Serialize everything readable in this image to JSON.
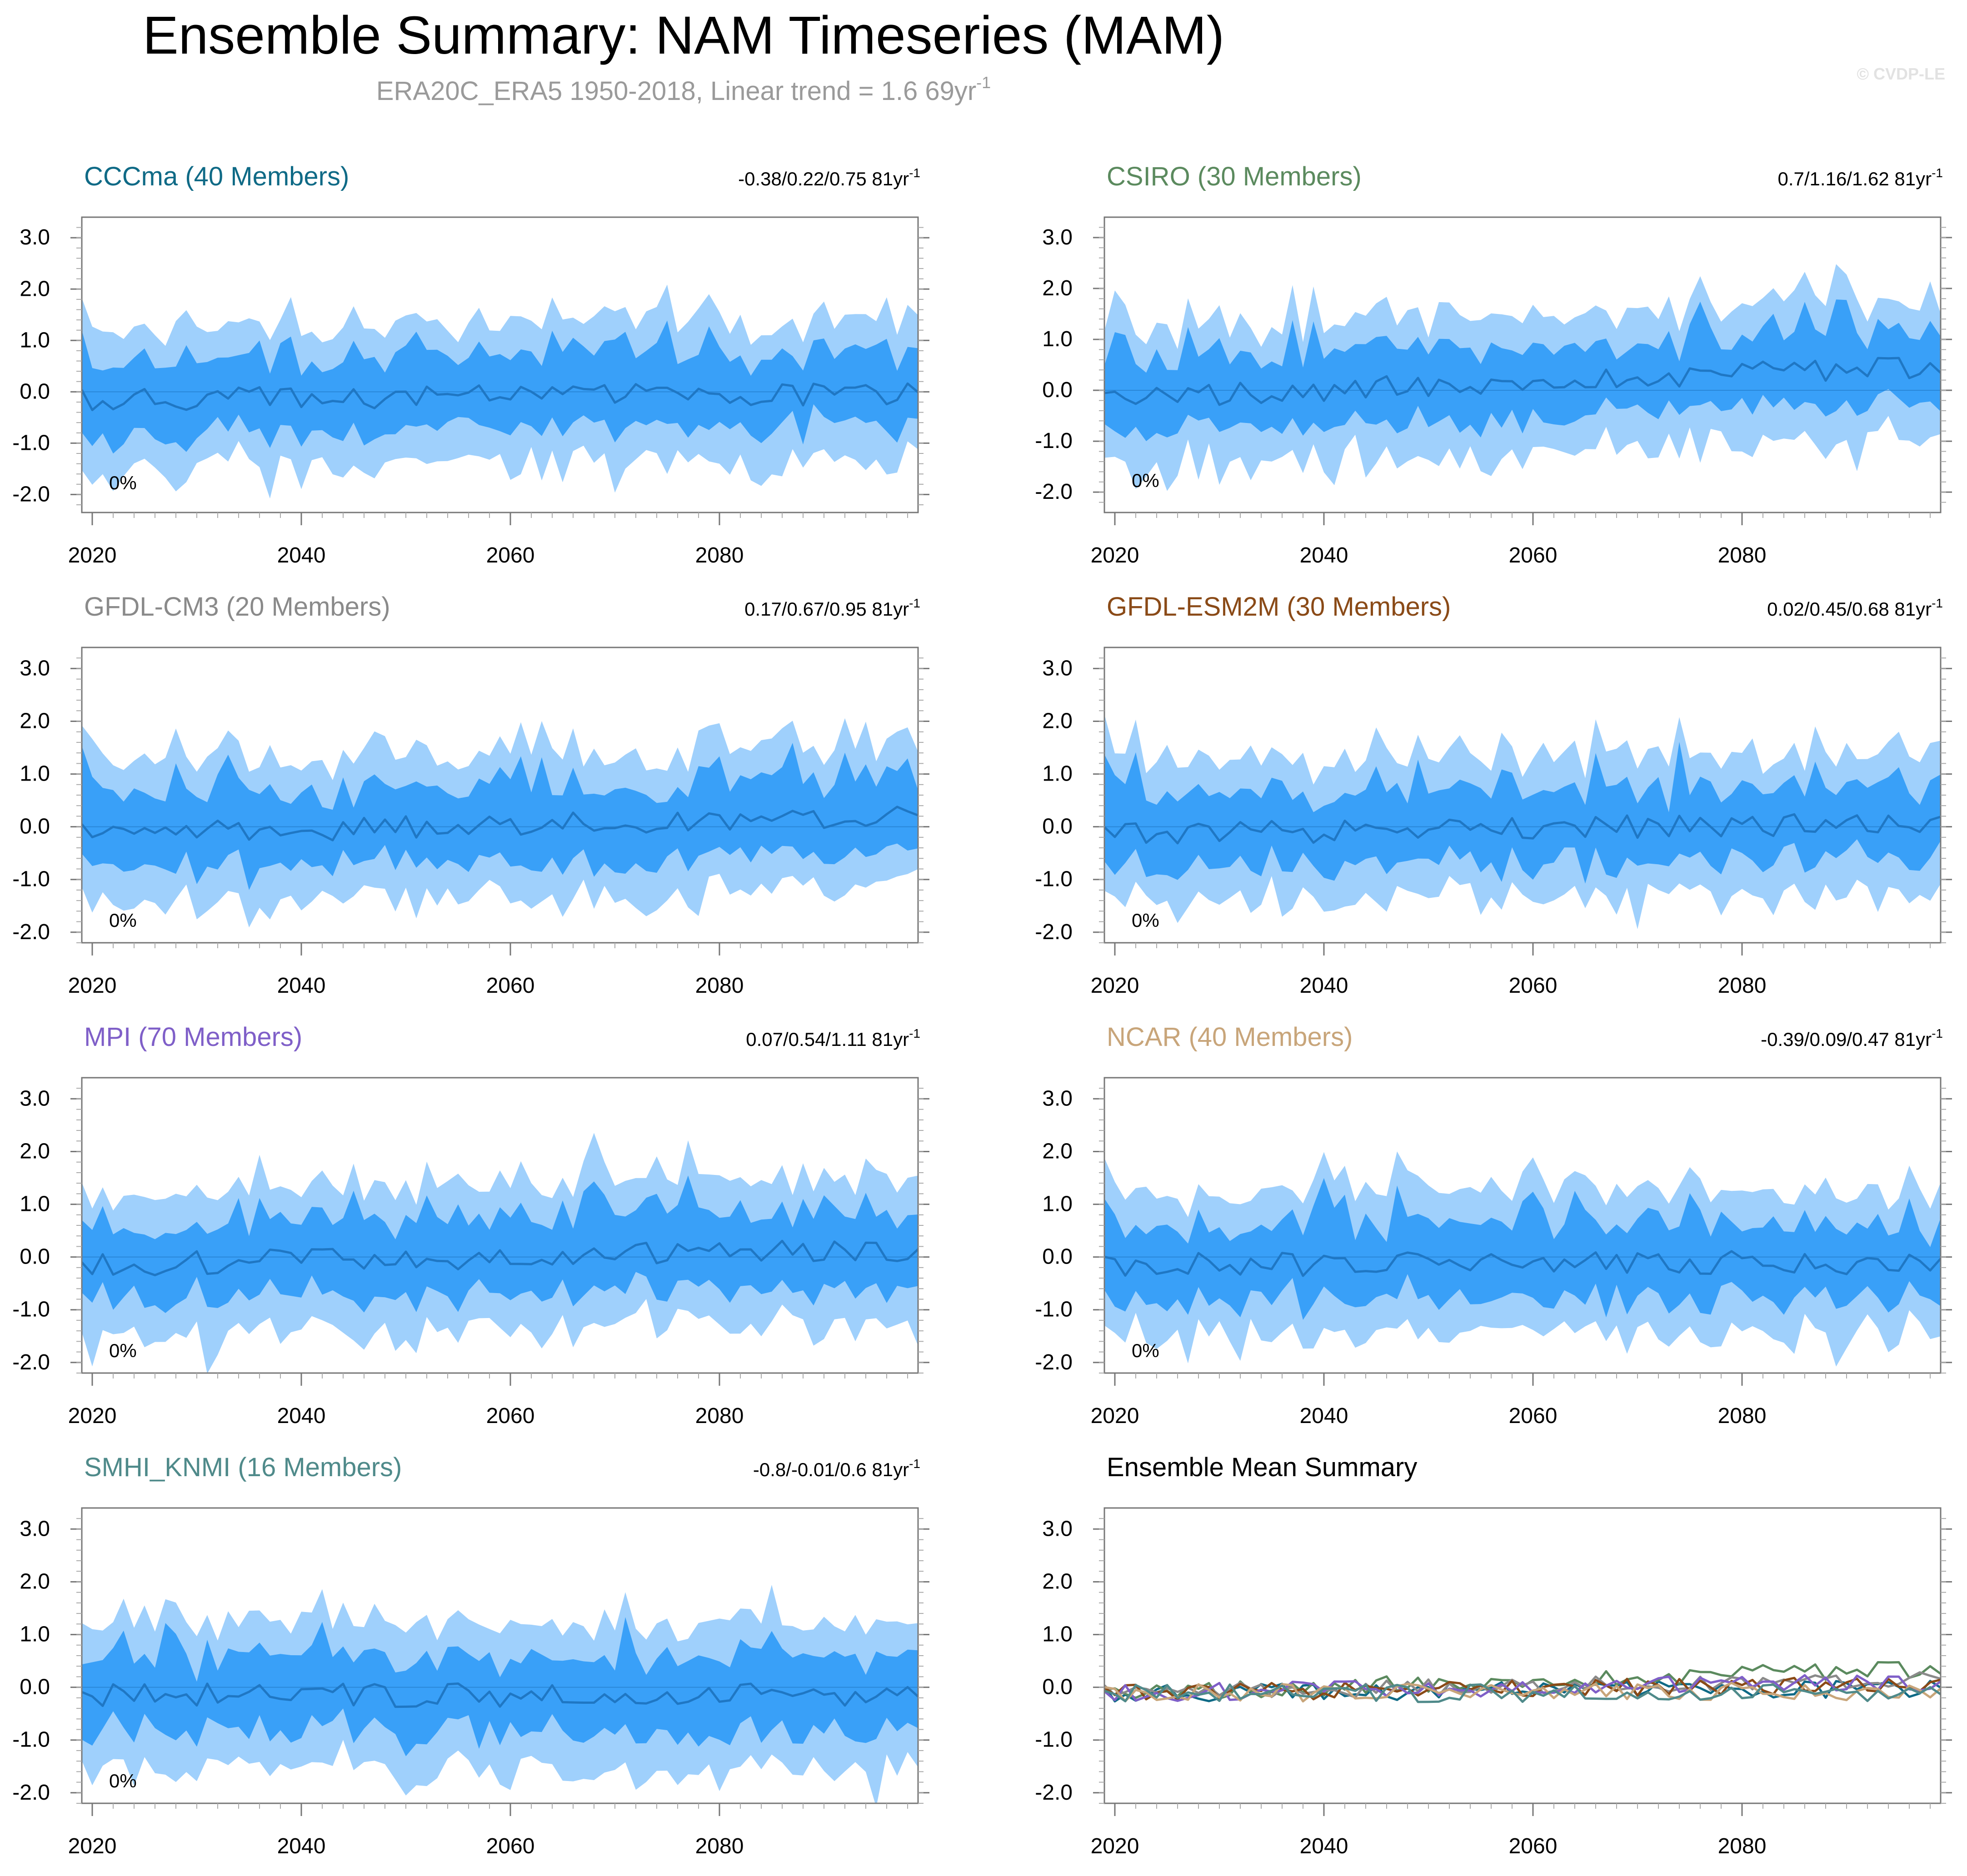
{
  "figure": {
    "title": "Ensemble Summary: NAM Timeseries (MAM)",
    "subtitle_main": "ERA20C_ERA5 1950-2018, Linear trend = 1.6 69yr",
    "subtitle_sup": "-1",
    "copyright": "© CVDP-LE"
  },
  "colors": {
    "outer_band": "#9fd0fc",
    "inner_band": "#39a0f8",
    "mean_line": "#1f77c4",
    "axis": "#777777",
    "text": "#000000"
  },
  "chart_data": [
    {
      "type": "area",
      "title": "CCCma (40 Members)",
      "title_color": "#0f6a86",
      "trend": "-0.38/0.22/0.75 81yr",
      "trend_sup": "-1",
      "pct_label": "0%",
      "xticks": [
        2020,
        2040,
        2060,
        2080
      ],
      "yticks": [
        "3.0",
        "2.0",
        "1.0",
        "0.0",
        "-1.0",
        "-2.0"
      ],
      "xlim": [
        2019,
        2099
      ],
      "ylim": [
        -2.35,
        3.4
      ],
      "seed": 11,
      "trend_value": 0.22
    },
    {
      "type": "area",
      "title": "CSIRO (30 Members)",
      "title_color": "#5b8a5e",
      "trend": "0.7/1.16/1.62 81yr",
      "trend_sup": "-1",
      "pct_label": "0%",
      "xticks": [
        2020,
        2040,
        2060,
        2080
      ],
      "yticks": [
        "3.0",
        "2.0",
        "1.0",
        "0.0",
        "-1.0",
        "-2.0"
      ],
      "xlim": [
        2019,
        2099
      ],
      "ylim": [
        -2.4,
        3.4
      ],
      "seed": 23,
      "trend_value": 1.16
    },
    {
      "type": "area",
      "title": "GFDL-CM3 (20 Members)",
      "title_color": "#8a8a8a",
      "trend": "0.17/0.67/0.95 81yr",
      "trend_sup": "-1",
      "pct_label": "0%",
      "xticks": [
        2020,
        2040,
        2060,
        2080
      ],
      "yticks": [
        "3.0",
        "2.0",
        "1.0",
        "0.0",
        "-1.0",
        "-2.0"
      ],
      "xlim": [
        2019,
        2099
      ],
      "ylim": [
        -2.2,
        3.4
      ],
      "seed": 37,
      "trend_value": 0.67
    },
    {
      "type": "area",
      "title": "GFDL-ESM2M (30 Members)",
      "title_color": "#8a4a17",
      "trend": "0.02/0.45/0.68 81yr",
      "trend_sup": "-1",
      "pct_label": "0%",
      "xticks": [
        2020,
        2040,
        2060,
        2080
      ],
      "yticks": [
        "3.0",
        "2.0",
        "1.0",
        "0.0",
        "-1.0",
        "-2.0"
      ],
      "xlim": [
        2019,
        2099
      ],
      "ylim": [
        -2.2,
        3.4
      ],
      "seed": 41,
      "trend_value": 0.45
    },
    {
      "type": "area",
      "title": "MPI (70 Members)",
      "title_color": "#7f5fc8",
      "trend": "0.07/0.54/1.11 81yr",
      "trend_sup": "-1",
      "pct_label": "0%",
      "xticks": [
        2020,
        2040,
        2060,
        2080
      ],
      "yticks": [
        "3.0",
        "2.0",
        "1.0",
        "0.0",
        "-1.0",
        "-2.0"
      ],
      "xlim": [
        2019,
        2099
      ],
      "ylim": [
        -2.2,
        3.4
      ],
      "seed": 53,
      "trend_value": 0.54
    },
    {
      "type": "area",
      "title": "NCAR (40 Members)",
      "title_color": "#c8a57a",
      "trend": "-0.39/0.09/0.47 81yr",
      "trend_sup": "-1",
      "pct_label": "0%",
      "xticks": [
        2020,
        2040,
        2060,
        2080
      ],
      "yticks": [
        "3.0",
        "2.0",
        "1.0",
        "0.0",
        "-1.0",
        "-2.0"
      ],
      "xlim": [
        2019,
        2099
      ],
      "ylim": [
        -2.2,
        3.4
      ],
      "seed": 67,
      "trend_value": 0.09
    },
    {
      "type": "area",
      "title": "SMHI_KNMI (16 Members)",
      "title_color": "#4f8a8a",
      "trend": "-0.8/-0.01/0.6 81yr",
      "trend_sup": "-1",
      "pct_label": "0%",
      "xticks": [
        2020,
        2040,
        2060,
        2080
      ],
      "yticks": [
        "3.0",
        "2.0",
        "1.0",
        "0.0",
        "-1.0",
        "-2.0"
      ],
      "xlim": [
        2019,
        2099
      ],
      "ylim": [
        -2.2,
        3.4
      ],
      "seed": 79,
      "trend_value": -0.01
    },
    {
      "type": "line",
      "title": "Ensemble Mean Summary",
      "title_color": "#000000",
      "xticks": [
        2020,
        2040,
        2060,
        2080
      ],
      "yticks": [
        "3.0",
        "2.0",
        "1.0",
        "0.0",
        "-1.0",
        "-2.0"
      ],
      "xlim": [
        2019,
        2099
      ],
      "ylim": [
        -2.2,
        3.4
      ],
      "series": [
        {
          "name": "CCCma",
          "color": "#0f6a86",
          "seed": 11,
          "trend_value": 0.22
        },
        {
          "name": "CSIRO",
          "color": "#5b8a5e",
          "seed": 23,
          "trend_value": 1.16
        },
        {
          "name": "GFDL-CM3",
          "color": "#8a8a8a",
          "seed": 37,
          "trend_value": 0.67
        },
        {
          "name": "GFDL-ESM2M",
          "color": "#8a4a17",
          "seed": 41,
          "trend_value": 0.45
        },
        {
          "name": "MPI",
          "color": "#7f5fc8",
          "seed": 53,
          "trend_value": 0.54
        },
        {
          "name": "NCAR",
          "color": "#c8a57a",
          "seed": 67,
          "trend_value": 0.09
        },
        {
          "name": "SMHI_KNMI",
          "color": "#4f8a8a",
          "seed": 79,
          "trend_value": -0.01
        }
      ]
    }
  ]
}
